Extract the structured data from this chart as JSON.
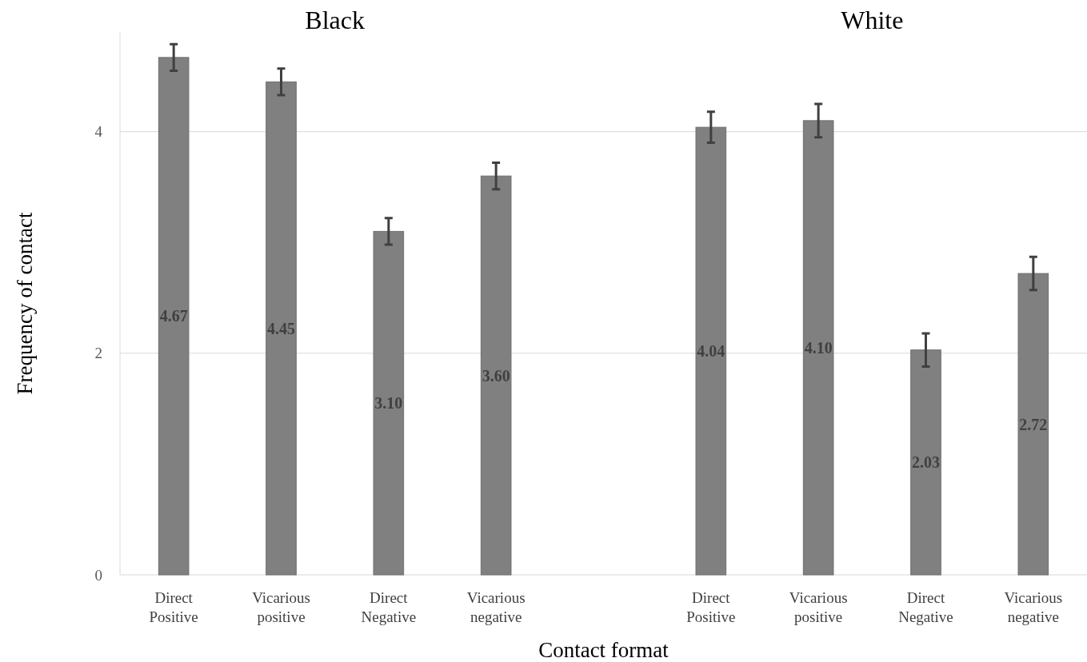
{
  "chart_data": {
    "type": "bar",
    "xlabel": "Contact format",
    "ylabel": "Frequency of contact",
    "annotations": [
      "Black",
      "White"
    ],
    "categories": [
      "Direct Positive",
      "Vicarious positive",
      "Direct Negative",
      "Vicarious negative",
      null,
      "Direct Positive",
      "Vicarious positive",
      "Direct Negative",
      "Vicarious negative"
    ],
    "values": [
      4.67,
      4.45,
      3.1,
      3.6,
      null,
      4.04,
      4.1,
      2.03,
      2.72
    ],
    "errors": [
      0.12,
      0.12,
      0.12,
      0.12,
      null,
      0.14,
      0.15,
      0.15,
      0.15
    ],
    "color": "#808080",
    "value_labels": [
      "4.67",
      "4.45",
      "3.10",
      "3.60",
      null,
      "4.04",
      "4.10",
      "2.03",
      "2.72"
    ],
    "ylim": [
      0,
      4.9
    ],
    "yticks": [
      0,
      2,
      4
    ],
    "grid": "y"
  }
}
